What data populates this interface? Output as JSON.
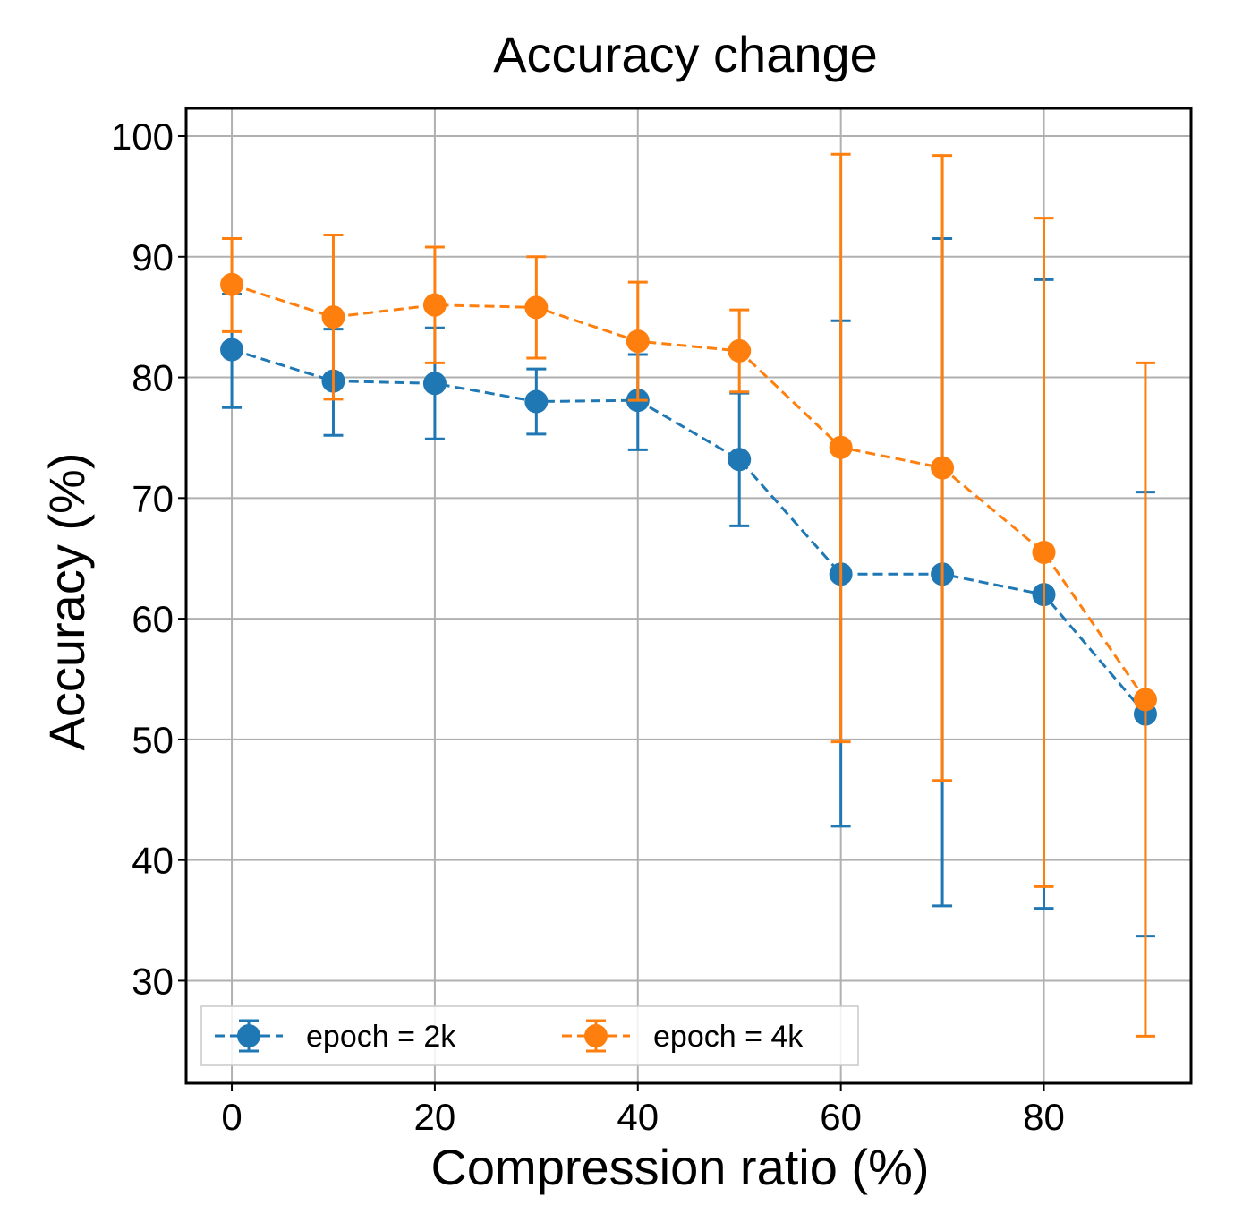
{
  "chart_data": {
    "type": "line",
    "title": "Accuracy change",
    "xlabel": "Compression ratio (%)",
    "ylabel": "Accuracy (%)",
    "xlim": [
      -4.5,
      94.5
    ],
    "ylim": [
      21.5,
      102.3
    ],
    "xticks": [
      0,
      20,
      40,
      60,
      80
    ],
    "yticks": [
      30,
      40,
      50,
      60,
      70,
      80,
      90,
      100
    ],
    "grid": true,
    "legend_position": "bottom",
    "x": [
      0,
      10,
      20,
      30,
      40,
      50,
      60,
      70,
      80,
      90
    ],
    "series": [
      {
        "name": "epoch = 2k",
        "color": "#1f77b4",
        "values": [
          82.3,
          79.7,
          79.5,
          78.0,
          78.1,
          73.2,
          63.7,
          63.7,
          62.0,
          52.1
        ],
        "err_low": [
          77.5,
          75.2,
          74.9,
          75.3,
          74.0,
          67.7,
          42.8,
          36.2,
          36.0,
          33.7
        ],
        "err_high": [
          86.9,
          84.0,
          84.1,
          80.7,
          81.9,
          78.7,
          84.7,
          91.5,
          88.1,
          70.5
        ]
      },
      {
        "name": "epoch = 4k",
        "color": "#ff7f0e",
        "values": [
          87.7,
          85.0,
          86.0,
          85.8,
          83.0,
          82.2,
          74.2,
          72.5,
          65.5,
          53.3
        ],
        "err_low": [
          83.8,
          78.2,
          81.2,
          81.6,
          78.1,
          78.8,
          49.8,
          46.6,
          37.8,
          25.4
        ],
        "err_high": [
          91.5,
          91.8,
          90.8,
          90.0,
          87.9,
          85.6,
          98.5,
          98.4,
          93.2,
          81.2
        ]
      }
    ]
  }
}
